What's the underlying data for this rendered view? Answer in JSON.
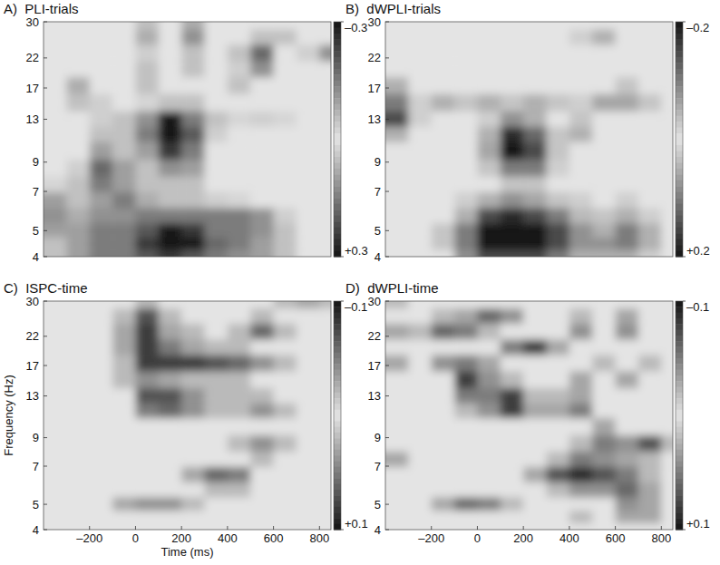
{
  "chart_data": [
    {
      "type": "heatmap",
      "title": "A)  PLI-trials",
      "log": "y",
      "tick_labels": "y",
      "x": [
        -350,
        -250,
        -150,
        -50,
        50,
        150,
        250,
        350,
        450,
        550,
        650,
        750,
        850
      ],
      "y": [
        4,
        4.5,
        5,
        5.7,
        6.5,
        7.5,
        8.5,
        10,
        11.5,
        13,
        15,
        17.5,
        20,
        23,
        26.5,
        30
      ],
      "xlim": [
        -400,
        850
      ],
      "ylim": [
        4,
        30
      ],
      "yticks": [
        4,
        5,
        7,
        9,
        13,
        17,
        22,
        30
      ],
      "colorbar": {
        "lim": [
          -0.3,
          0.3
        ],
        "ticks": [
          {
            "value": -0.3,
            "label": "–0.3"
          },
          {
            "value": 0.3,
            "label": "+0.3"
          }
        ]
      },
      "values": [
        [
          0.05,
          0.1,
          0.15,
          0.15,
          0.2,
          0.25,
          0.2,
          0.15,
          0.12,
          0.1,
          0.05,
          0,
          0
        ],
        [
          0.05,
          0.1,
          0.15,
          0.15,
          0.25,
          0.3,
          0.3,
          0.18,
          0.15,
          0.1,
          0.05,
          0,
          0
        ],
        [
          0.1,
          0.1,
          0.15,
          0.15,
          0.2,
          0.3,
          0.25,
          0.15,
          0.15,
          0.12,
          0.05,
          0,
          0
        ],
        [
          0.12,
          0.08,
          0.12,
          0.12,
          0.15,
          0.15,
          0.15,
          0.15,
          0.15,
          0.12,
          0.03,
          0,
          0
        ],
        [
          0.1,
          0.05,
          0.1,
          0.15,
          0.08,
          0.05,
          0.05,
          0.03,
          0.02,
          0,
          0,
          0,
          0
        ],
        [
          0.02,
          0.05,
          0.15,
          0.1,
          0.05,
          0.05,
          0.05,
          0,
          0,
          0,
          0,
          0,
          0
        ],
        [
          0,
          0.03,
          0.18,
          0.1,
          0.05,
          0.12,
          0.1,
          0,
          0,
          0,
          0,
          0,
          0
        ],
        [
          0,
          0,
          0.1,
          0.05,
          0.1,
          0.25,
          0.15,
          0,
          0,
          0,
          0,
          0,
          0
        ],
        [
          0,
          0,
          0.05,
          0.05,
          0.15,
          0.3,
          0.2,
          0.03,
          0,
          0,
          0,
          0,
          0
        ],
        [
          0,
          0,
          0.03,
          0.05,
          0.12,
          0.3,
          0.15,
          0.05,
          0.02,
          0.03,
          0.02,
          0,
          0
        ],
        [
          0,
          0.05,
          0.03,
          0,
          0.02,
          0.05,
          0.05,
          0,
          0,
          0,
          0,
          0,
          0
        ],
        [
          0,
          0.08,
          0,
          0,
          0.05,
          0,
          0,
          0,
          0.05,
          0,
          0,
          0,
          0
        ],
        [
          0,
          0,
          0,
          0,
          0.05,
          0,
          0.05,
          0,
          0.03,
          0.12,
          0,
          0,
          0
        ],
        [
          0,
          0,
          0,
          0,
          0.03,
          0,
          0.05,
          0,
          0.05,
          0.18,
          0,
          0.03,
          0.12
        ],
        [
          0,
          0,
          0,
          0,
          0.08,
          0,
          0.12,
          0,
          0,
          0.05,
          0.05,
          0,
          0
        ],
        [
          0,
          0,
          0,
          0,
          0.05,
          0,
          0.08,
          0,
          0,
          0,
          0,
          0,
          0
        ]
      ]
    },
    {
      "type": "heatmap",
      "title": "B)  dWPLI-trials",
      "log": "y",
      "tick_labels": "y",
      "x": [
        -350,
        -250,
        -150,
        -50,
        50,
        150,
        250,
        350,
        450,
        550,
        650,
        750,
        850
      ],
      "y": [
        4,
        4.5,
        5,
        5.7,
        6.5,
        7.5,
        8.5,
        10,
        11.5,
        13,
        15,
        17.5,
        20,
        23,
        26.5,
        30
      ],
      "xlim": [
        -400,
        850
      ],
      "ylim": [
        4,
        30
      ],
      "yticks": [
        4,
        5,
        7,
        9,
        13,
        17,
        22,
        30
      ],
      "colorbar": {
        "lim": [
          -0.2,
          0.2
        ],
        "ticks": [
          {
            "value": -0.2,
            "label": "–0.2"
          },
          {
            "value": 0.2,
            "label": "+0.2"
          }
        ]
      },
      "values": [
        [
          0,
          0,
          0,
          0.08,
          0.15,
          0.15,
          0.15,
          0.1,
          0.05,
          0.05,
          0.05,
          0.02,
          0
        ],
        [
          0,
          0,
          0.03,
          0.1,
          0.2,
          0.2,
          0.2,
          0.15,
          0.08,
          0.08,
          0.1,
          0.05,
          0
        ],
        [
          0,
          0,
          0.03,
          0.1,
          0.2,
          0.2,
          0.2,
          0.15,
          0.08,
          0.05,
          0.1,
          0.05,
          0
        ],
        [
          0,
          0,
          0,
          0.05,
          0.15,
          0.18,
          0.15,
          0.1,
          0.04,
          0.03,
          0.05,
          0.02,
          0
        ],
        [
          0,
          0,
          0,
          0.02,
          0.05,
          0.08,
          0.06,
          0.03,
          0.02,
          0,
          0.02,
          0,
          0
        ],
        [
          0,
          0,
          0,
          0,
          0,
          0.03,
          0.03,
          0,
          0,
          0,
          0,
          0,
          0
        ],
        [
          0,
          0,
          0,
          0,
          0.03,
          0.1,
          0.1,
          0.02,
          0,
          0,
          0,
          0,
          0
        ],
        [
          0,
          0,
          0,
          0,
          0.06,
          0.2,
          0.15,
          0.03,
          0,
          0,
          0,
          0,
          0
        ],
        [
          0.05,
          0,
          0,
          0,
          0.05,
          0.18,
          0.12,
          0.03,
          0.05,
          0,
          0,
          0,
          0
        ],
        [
          0.15,
          0.02,
          0,
          0,
          0.02,
          0.08,
          0.05,
          0,
          0.03,
          0,
          0,
          0,
          0
        ],
        [
          0.1,
          0.02,
          0.05,
          0.03,
          0.05,
          0.03,
          0.05,
          0.03,
          0.02,
          0.06,
          0.06,
          0.03,
          0
        ],
        [
          0.05,
          0,
          0,
          0,
          0,
          0,
          0,
          0,
          0,
          0,
          0.03,
          0,
          0
        ],
        [
          0,
          0,
          0,
          0,
          0,
          0,
          0,
          0,
          0,
          0,
          0,
          0,
          0
        ],
        [
          0,
          0,
          0,
          0,
          0,
          0,
          0,
          0,
          0,
          0,
          0,
          0,
          0
        ],
        [
          0,
          0,
          0,
          0,
          0,
          0,
          0,
          0,
          0.02,
          0.05,
          0,
          0,
          0
        ],
        [
          0,
          0,
          0,
          0,
          0,
          0,
          0,
          0,
          0,
          0,
          0,
          0,
          0
        ]
      ]
    },
    {
      "type": "heatmap",
      "title": "C)  ISPC-time",
      "log": "y",
      "tick_labels": true,
      "x_label": "Time (ms)",
      "y_label": "Frequency (Hz)",
      "x": [
        -350,
        -250,
        -150,
        -50,
        50,
        150,
        250,
        350,
        450,
        550,
        650,
        750,
        850
      ],
      "y": [
        4,
        4.5,
        5,
        5.7,
        6.5,
        7.5,
        8.5,
        10,
        11.5,
        13,
        15,
        17.5,
        20,
        23,
        26.5,
        30
      ],
      "xlim": [
        -400,
        850
      ],
      "ylim": [
        4,
        30
      ],
      "yticks": [
        4,
        5,
        7,
        9,
        13,
        17,
        22,
        30
      ],
      "xticks": [
        {
          "value": -200,
          "label": "–200"
        },
        0,
        200,
        400,
        600,
        800
      ],
      "colorbar": {
        "lim": [
          -0.1,
          0.1
        ],
        "ticks": [
          {
            "value": -0.1,
            "label": "–0.1"
          },
          {
            "value": 0.1,
            "label": "+0.1"
          }
        ]
      },
      "values": [
        [
          0,
          0,
          0,
          0,
          0,
          0,
          0,
          0,
          0,
          0,
          0,
          0,
          0
        ],
        [
          0,
          0,
          0,
          0,
          0,
          0,
          0,
          0,
          0,
          0,
          0,
          0,
          0
        ],
        [
          0,
          0,
          0,
          0.03,
          0.04,
          0.04,
          0.02,
          0,
          0,
          0,
          0,
          0,
          0
        ],
        [
          0,
          0,
          0,
          0,
          0,
          0,
          0,
          0.02,
          0.02,
          0,
          0,
          0,
          0
        ],
        [
          0,
          0,
          0,
          0,
          0,
          0,
          0.03,
          0.06,
          0.05,
          0,
          0,
          0,
          0
        ],
        [
          0,
          0,
          0,
          0,
          0,
          0,
          0,
          0,
          0,
          0.02,
          0,
          0,
          0
        ],
        [
          0,
          0,
          0,
          0,
          0,
          0,
          0,
          0,
          0.02,
          0.04,
          0.02,
          0,
          0
        ],
        [
          0,
          0,
          0,
          0,
          0,
          0,
          0,
          0,
          0,
          0,
          0,
          0,
          0
        ],
        [
          0,
          0,
          0,
          0,
          0.05,
          0.06,
          0.04,
          0.02,
          0.02,
          0.04,
          0.02,
          0,
          0
        ],
        [
          0,
          0,
          0,
          0,
          0.07,
          0.07,
          0.04,
          0.02,
          0.02,
          0.02,
          0,
          0,
          0
        ],
        [
          0,
          0,
          0,
          0.02,
          0.04,
          0.03,
          0.02,
          0.02,
          0.02,
          0,
          0,
          0,
          0
        ],
        [
          0,
          0,
          0,
          0.02,
          0.08,
          0.08,
          0.08,
          0.07,
          0.06,
          0.04,
          0.02,
          0,
          0
        ],
        [
          0,
          0,
          0,
          0.03,
          0.08,
          0.05,
          0.03,
          0.02,
          0.02,
          0,
          0,
          0,
          0
        ],
        [
          0,
          0,
          0,
          0.03,
          0.08,
          0.03,
          0.02,
          0,
          0.02,
          0.06,
          0.02,
          0,
          0
        ],
        [
          0,
          0,
          0,
          0.02,
          0.07,
          0.02,
          0,
          0,
          0,
          0.02,
          0,
          0,
          0
        ],
        [
          0,
          0,
          0,
          0,
          0.02,
          0,
          0,
          0,
          0,
          0,
          0.02,
          0.03,
          0.02
        ]
      ]
    },
    {
      "type": "heatmap",
      "title": "D)  dWPLI-time",
      "log": "y",
      "tick_labels": true,
      "x": [
        -350,
        -250,
        -150,
        -50,
        50,
        150,
        250,
        350,
        450,
        550,
        650,
        750,
        850
      ],
      "y": [
        4,
        4.5,
        5,
        5.7,
        6.5,
        7.5,
        8.5,
        10,
        11.5,
        13,
        15,
        17.5,
        20,
        23,
        26.5,
        30
      ],
      "xlim": [
        -400,
        850
      ],
      "ylim": [
        4,
        30
      ],
      "yticks": [
        4,
        5,
        7,
        9,
        13,
        17,
        22,
        30
      ],
      "xticks": [
        {
          "value": -200,
          "label": "–200"
        },
        0,
        200,
        400,
        600,
        800
      ],
      "colorbar": {
        "lim": [
          -0.1,
          0.1
        ],
        "ticks": [
          {
            "value": -0.1,
            "label": "–0.1"
          },
          {
            "value": 0.1,
            "label": "+0.1"
          }
        ]
      },
      "values": [
        [
          0,
          0,
          0,
          0,
          0,
          0,
          0,
          0,
          0,
          0,
          0,
          0,
          0
        ],
        [
          0,
          0,
          0,
          0,
          0,
          0,
          0,
          0,
          0.02,
          0,
          0.03,
          0.03,
          0
        ],
        [
          0,
          0,
          0.03,
          0.06,
          0.05,
          0.02,
          0,
          0,
          0,
          0,
          0.04,
          0.03,
          0
        ],
        [
          0,
          0,
          0,
          0,
          0,
          0,
          0,
          0.02,
          0.04,
          0.04,
          0.06,
          0.03,
          0
        ],
        [
          0,
          0,
          0,
          0,
          0,
          0,
          0.03,
          0.07,
          0.09,
          0.07,
          0.05,
          0.02,
          0
        ],
        [
          0.03,
          0,
          0,
          0,
          0,
          0,
          0,
          0.02,
          0.05,
          0.04,
          0.03,
          0.02,
          0
        ],
        [
          0,
          0,
          0,
          0,
          0,
          0,
          0,
          0,
          0.02,
          0.05,
          0.04,
          0.07,
          0.02
        ],
        [
          0,
          0,
          0,
          0,
          0,
          0,
          0,
          0,
          0,
          0.03,
          0,
          0,
          0
        ],
        [
          0,
          0,
          0,
          0.02,
          0.04,
          0.08,
          0.03,
          0.03,
          0.05,
          0,
          0,
          0,
          0
        ],
        [
          0,
          0,
          0,
          0.05,
          0.05,
          0.08,
          0.02,
          0.02,
          0.03,
          0,
          0,
          0,
          0
        ],
        [
          0,
          0,
          0,
          0.08,
          0.04,
          0.02,
          0,
          0,
          0.03,
          0,
          0.03,
          0,
          0
        ],
        [
          0.03,
          0,
          0.04,
          0.05,
          0.03,
          0,
          0,
          0,
          0,
          0.02,
          0,
          0.02,
          0
        ],
        [
          0,
          0,
          0,
          0,
          0,
          0.05,
          0.08,
          0.03,
          0,
          0,
          0,
          0,
          0
        ],
        [
          0.03,
          0.02,
          0.06,
          0.05,
          0.02,
          0,
          0,
          0,
          0.04,
          0,
          0.04,
          0,
          0
        ],
        [
          0,
          0,
          0.02,
          0.03,
          0.06,
          0.04,
          0,
          0,
          0.02,
          0,
          0.03,
          0,
          0
        ],
        [
          0.02,
          0,
          0,
          0,
          0,
          0,
          0,
          0,
          0,
          0,
          0,
          0,
          0
        ]
      ]
    }
  ]
}
